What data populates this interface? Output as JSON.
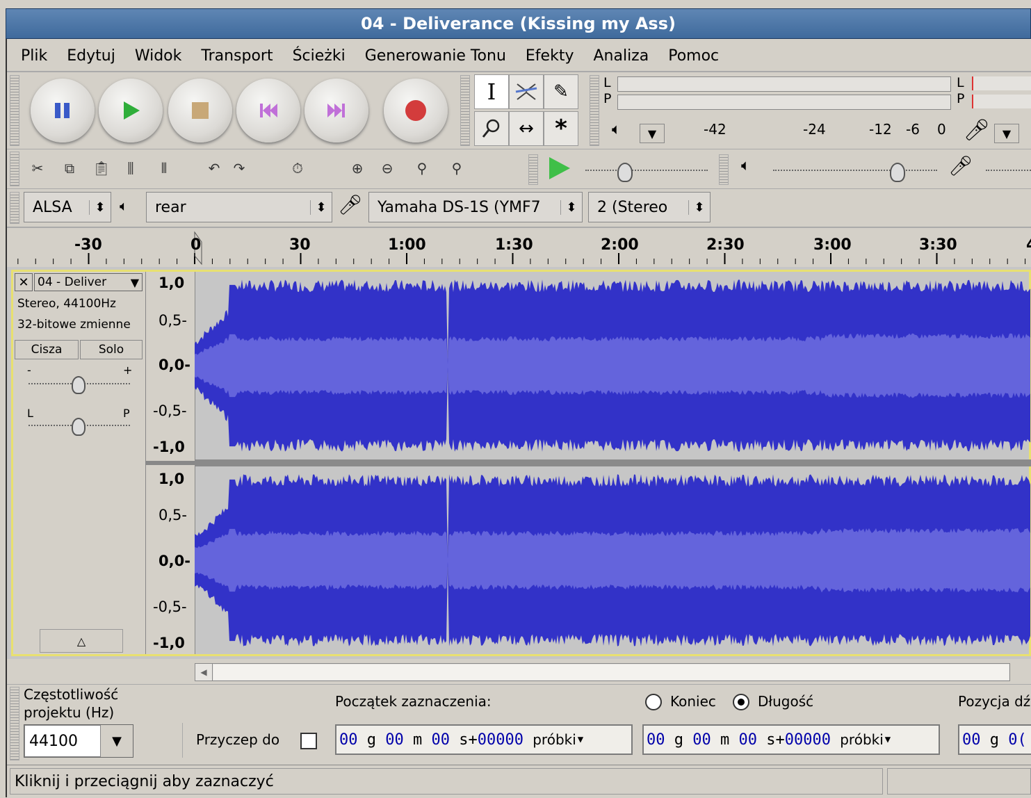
{
  "window": {
    "title": "04 - Deliverance (Kissing my Ass)"
  },
  "menu": [
    "Plik",
    "Edytuj",
    "Widok",
    "Transport",
    "Ścieżki",
    "Generowanie Tonu",
    "Efekty",
    "Analiza",
    "Pomoc"
  ],
  "meter": {
    "left_label": "L",
    "right_label": "P",
    "scale": [
      "-42",
      "-24",
      "-12",
      "-6",
      "0"
    ]
  },
  "device": {
    "host": "ALSA",
    "output": "rear",
    "input": "Yamaha DS-1S (YMF7",
    "channels": "2 (Stereo"
  },
  "ruler": [
    "-30",
    "0",
    "30",
    "1:00",
    "1:30",
    "2:00",
    "2:30",
    "3:00",
    "3:30",
    "4"
  ],
  "track": {
    "name": "04 - Deliver",
    "info1": "Stereo, 44100Hz",
    "info2": "32-bitowe zmienne",
    "mute": "Cisza",
    "solo": "Solo",
    "gain_minus": "-",
    "gain_plus": "+",
    "pan_left": "L",
    "pan_right": "P",
    "scale": [
      "1,0",
      "0,5-",
      "0,0-",
      "-0,5-",
      "-1,0"
    ]
  },
  "bottom": {
    "rate_label": "Częstotliwość projektu (Hz)",
    "rate_value": "44100",
    "snap_label": "Przyczep do",
    "sel_start_label": "Początek zaznaczenia:",
    "end_label": "Koniec",
    "length_label": "Długość",
    "pos_label": "Pozycja dź",
    "time": {
      "h": "00",
      "hu": "g",
      "m": "00",
      "mu": "m",
      "s": "00",
      "su": "s+",
      "samples": "00000",
      "samples_u": "próbki"
    },
    "time_cut": {
      "h": "00",
      "hu": "g",
      "m": "0("
    }
  },
  "status": {
    "text": "Kliknij i przeciągnij aby zaznaczyć"
  },
  "colors": {
    "wave_dark": "#3232c8",
    "wave_light": "#6464dc",
    "selection_bg": "#c6c6c6",
    "titlebar": "#4a74a6"
  }
}
